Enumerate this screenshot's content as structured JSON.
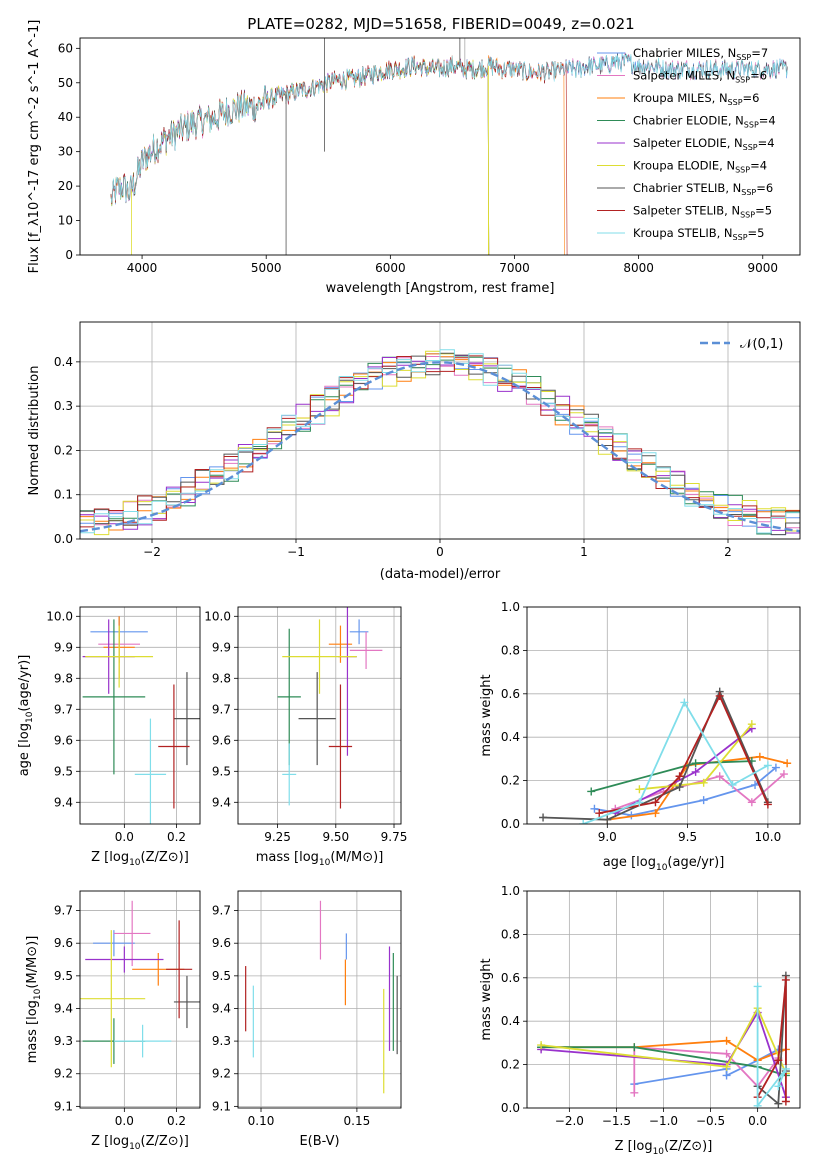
{
  "figure": {
    "title": "PLATE=0282, MJD=51658, FIBERID=0049, z=0.021"
  },
  "chart_data": [
    {
      "type": "line",
      "id": "spectrum",
      "xlabel": "wavelength [Angstrom, rest frame]",
      "ylabel": "Flux [f_λ10^-17 erg cm^-2 s^-1 A^-1]",
      "xlim": [
        3500,
        9300
      ],
      "ylim": [
        0,
        63
      ],
      "xticks": [
        4000,
        5000,
        6000,
        7000,
        8000,
        9000
      ],
      "yticks": [
        0,
        10,
        20,
        30,
        40,
        50,
        60
      ],
      "grid": false,
      "legend_position": "top-right",
      "continuum": {
        "x": [
          3750,
          3800,
          3850,
          3900,
          3950,
          4000,
          4100,
          4200,
          4300,
          4400,
          4500,
          4600,
          4700,
          4800,
          4900,
          5000,
          5100,
          5200,
          5300,
          5400,
          5500,
          5600,
          5700,
          5800,
          5900,
          6000,
          6100,
          6200,
          6300,
          6400,
          6500,
          6600,
          6700,
          6800,
          6900,
          7000,
          7100,
          7200,
          7300,
          7400,
          7500,
          7600,
          7700,
          7800,
          7900,
          8000,
          8100,
          8200,
          8300,
          8400,
          8500,
          8600,
          8700,
          8800,
          8900,
          9000,
          9100,
          9200
        ],
        "y": [
          16,
          19,
          20,
          18,
          22,
          27,
          31,
          34,
          36,
          38,
          39,
          40,
          42,
          43,
          43,
          45,
          46,
          47,
          48,
          49,
          50,
          51,
          51,
          52,
          53,
          54,
          54,
          55,
          54,
          54,
          55,
          54,
          54,
          55,
          54,
          54,
          53,
          53,
          53,
          54,
          54,
          55,
          55,
          56,
          56,
          55,
          55,
          54,
          54,
          54,
          54,
          54,
          54,
          54,
          54,
          54,
          54,
          54
        ]
      },
      "series": [
        {
          "name": "Chabrier MILES, N_SSP=7",
          "label_main": "Chabrier MILES, N",
          "label_sub": "SSP",
          "label_tail": "=7",
          "color": "#6495ed",
          "end": 9200
        },
        {
          "name": "Salpeter MILES, N_SSP=6",
          "label_main": "Salpeter MILES, N",
          "label_sub": "SSP",
          "label_tail": "=6",
          "color": "#e377c2",
          "end": 9200
        },
        {
          "name": "Kroupa MILES, N_SSP=6",
          "label_main": "Kroupa MILES, N",
          "label_sub": "SSP",
          "label_tail": "=6",
          "color": "#ff7f0e",
          "end": 7400
        },
        {
          "name": "Chabrier ELODIE, N_SSP=4",
          "label_main": "Chabrier ELODIE, N",
          "label_sub": "SSP",
          "label_tail": "=4",
          "color": "#2e8b57",
          "end": 6790
        },
        {
          "name": "Salpeter ELODIE, N_SSP=4",
          "label_main": "Salpeter ELODIE, N",
          "label_sub": "SSP",
          "label_tail": "=4",
          "color": "#9932cc",
          "end": 6790
        },
        {
          "name": "Kroupa ELODIE, N_SSP=4",
          "label_main": "Kroupa ELODIE, N",
          "label_sub": "SSP",
          "label_tail": "=4",
          "color": "#dddd33",
          "end": 6790
        },
        {
          "name": "Chabrier STELIB, N_SSP=6",
          "label_main": "Chabrier STELIB, N",
          "label_sub": "SSP",
          "label_tail": "=6",
          "color": "#555555",
          "end": 9200
        },
        {
          "name": "Salpeter STELIB, N_SSP=5",
          "label_main": "Salpeter STELIB, N",
          "label_sub": "SSP",
          "label_tail": "=5",
          "color": "#b22222",
          "end": 7420
        },
        {
          "name": "Kroupa STELIB, N_SSP=5",
          "label_main": "Kroupa STELIB, N",
          "label_sub": "SSP",
          "label_tail": "=5",
          "color": "#80deea",
          "end": 9200
        }
      ]
    },
    {
      "type": "histogram",
      "id": "residuals",
      "xlabel": "(data-model)/error",
      "ylabel": "Normed distribution",
      "xlim": [
        -2.5,
        2.5
      ],
      "ylim": [
        0,
        0.49
      ],
      "xticks": [
        -2,
        -1,
        0,
        1,
        2
      ],
      "yticks": [
        0.0,
        0.1,
        0.2,
        0.3,
        0.4
      ],
      "grid": true,
      "bins": 50,
      "legend_position": "top-right",
      "reference": {
        "name": "N(0,1)",
        "label": "𝒩(0,1)",
        "color": "#5b8fd6"
      }
    },
    {
      "type": "scatter",
      "id": "age-vs-z",
      "xlabel": "Z [log10(Z/Z⊙)]",
      "ylabel": "age [log10(age/yr)]",
      "xlim": [
        -0.17,
        0.29
      ],
      "ylim": [
        9.33,
        10.03
      ],
      "xticks": [
        0.0,
        0.2
      ],
      "yticks": [
        9.4,
        9.5,
        9.6,
        9.7,
        9.8,
        9.9,
        10.0
      ],
      "grid": true,
      "points": [
        {
          "x": -0.02,
          "y": 9.95,
          "ex": 0.11,
          "ey": 0.05,
          "color": "#6495ed"
        },
        {
          "x": -0.02,
          "y": 9.91,
          "ex": 0.08,
          "ey": 0.06,
          "color": "#e377c2"
        },
        {
          "x": -0.02,
          "y": 9.9,
          "ex": 0.06,
          "ey": 0.1,
          "color": "#ff7f0e"
        },
        {
          "x": -0.04,
          "y": 9.74,
          "ex": 0.12,
          "ey": 0.25,
          "color": "#2e8b57"
        },
        {
          "x": -0.06,
          "y": 9.87,
          "ex": 0.1,
          "ey": 0.12,
          "color": "#9932cc"
        },
        {
          "x": -0.02,
          "y": 9.87,
          "ex": 0.13,
          "ey": 0.1,
          "color": "#dddd33"
        },
        {
          "x": 0.24,
          "y": 9.67,
          "ex": 0.05,
          "ey": 0.15,
          "color": "#555555"
        },
        {
          "x": 0.19,
          "y": 9.58,
          "ex": 0.06,
          "ey": 0.2,
          "color": "#b22222"
        },
        {
          "x": 0.1,
          "y": 9.49,
          "ex": 0.06,
          "ey": 0.18,
          "color": "#80deea"
        }
      ]
    },
    {
      "type": "scatter",
      "id": "age-vs-mass",
      "xlabel": "mass [log10(M/M⊙)]",
      "ylabel": "",
      "xlim": [
        9.08,
        9.78
      ],
      "ylim": [
        9.33,
        10.03
      ],
      "xticks": [
        9.25,
        9.5,
        9.75
      ],
      "yticks": [
        9.4,
        9.5,
        9.6,
        9.7,
        9.8,
        9.9,
        10.0
      ],
      "grid": true,
      "points": [
        {
          "x": 9.6,
          "y": 9.95,
          "ex": 0.04,
          "ey": 0.04,
          "color": "#6495ed"
        },
        {
          "x": 9.63,
          "y": 9.89,
          "ex": 0.07,
          "ey": 0.06,
          "color": "#e377c2"
        },
        {
          "x": 9.52,
          "y": 9.91,
          "ex": 0.05,
          "ey": 0.06,
          "color": "#ff7f0e"
        },
        {
          "x": 9.3,
          "y": 9.74,
          "ex": 0.05,
          "ey": 0.22,
          "color": "#2e8b57"
        },
        {
          "x": 9.55,
          "y": 9.87,
          "ex": 0.04,
          "ey": 0.32,
          "color": "#9932cc"
        },
        {
          "x": 9.43,
          "y": 9.87,
          "ex": 0.16,
          "ey": 0.12,
          "color": "#dddd33"
        },
        {
          "x": 9.42,
          "y": 9.67,
          "ex": 0.08,
          "ey": 0.15,
          "color": "#555555"
        },
        {
          "x": 9.52,
          "y": 9.58,
          "ex": 0.05,
          "ey": 0.2,
          "color": "#b22222"
        },
        {
          "x": 9.3,
          "y": 9.49,
          "ex": 0.03,
          "ey": 0.1,
          "color": "#80deea"
        }
      ]
    },
    {
      "type": "line",
      "id": "weight-vs-age",
      "xlabel": "age [log10(age/yr)]",
      "ylabel": "mass weight",
      "xlim": [
        8.5,
        10.2
      ],
      "ylim": [
        0,
        1.0
      ],
      "xticks": [
        9.0,
        9.5,
        10.0
      ],
      "yticks": [
        0.0,
        0.2,
        0.4,
        0.6,
        0.8,
        1.0
      ],
      "grid": true,
      "series": [
        {
          "color": "#6495ed",
          "x": [
            8.92,
            9.15,
            9.6,
            9.92,
            10.05
          ],
          "y": [
            0.07,
            0.04,
            0.11,
            0.18,
            0.26
          ]
        },
        {
          "color": "#e377c2",
          "x": [
            9.05,
            9.35,
            9.7,
            9.9,
            10.1
          ],
          "y": [
            0.07,
            0.15,
            0.22,
            0.1,
            0.23
          ]
        },
        {
          "color": "#ff7f0e",
          "x": [
            9.0,
            9.3,
            9.5,
            9.95,
            10.12
          ],
          "y": [
            0.02,
            0.05,
            0.27,
            0.31,
            0.28
          ]
        },
        {
          "color": "#2e8b57",
          "x": [
            8.9,
            9.55,
            9.9
          ],
          "y": [
            0.15,
            0.28,
            0.29
          ]
        },
        {
          "color": "#9932cc",
          "x": [
            9.05,
            9.55,
            9.9
          ],
          "y": [
            0.05,
            0.24,
            0.44
          ]
        },
        {
          "color": "#dddd33",
          "x": [
            9.2,
            9.6,
            9.9
          ],
          "y": [
            0.16,
            0.19,
            0.46
          ]
        },
        {
          "color": "#555555",
          "x": [
            8.6,
            9.0,
            9.45,
            9.7,
            10.0
          ],
          "y": [
            0.03,
            0.02,
            0.17,
            0.61,
            0.1
          ]
        },
        {
          "color": "#b22222",
          "x": [
            8.95,
            9.3,
            9.45,
            9.7,
            10.0
          ],
          "y": [
            0.05,
            0.1,
            0.22,
            0.59,
            0.09
          ]
        },
        {
          "color": "#80deea",
          "x": [
            8.85,
            9.2,
            9.48,
            9.78,
            10.0
          ],
          "y": [
            0.0,
            0.1,
            0.56,
            0.18,
            0.27
          ]
        }
      ]
    },
    {
      "type": "scatter",
      "id": "mass-vs-z",
      "xlabel": "Z [log10(Z/Z⊙)]",
      "ylabel": "mass [log10(M/M⊙)]",
      "xlim": [
        -0.17,
        0.29
      ],
      "ylim": [
        9.095,
        9.76
      ],
      "xticks": [
        0.0,
        0.2
      ],
      "yticks": [
        9.1,
        9.2,
        9.3,
        9.4,
        9.5,
        9.6,
        9.7
      ],
      "grid": true,
      "points": [
        {
          "x": -0.04,
          "y": 9.6,
          "ex": 0.08,
          "ey": 0.04,
          "color": "#6495ed"
        },
        {
          "x": 0.03,
          "y": 9.63,
          "ex": 0.07,
          "ey": 0.1,
          "color": "#e377c2"
        },
        {
          "x": 0.13,
          "y": 9.52,
          "ex": 0.1,
          "ey": 0.05,
          "color": "#ff7f0e"
        },
        {
          "x": -0.04,
          "y": 9.3,
          "ex": 0.12,
          "ey": 0.07,
          "color": "#2e8b57"
        },
        {
          "x": 0.0,
          "y": 9.55,
          "ex": 0.15,
          "ey": 0.04,
          "color": "#9932cc"
        },
        {
          "x": -0.05,
          "y": 9.43,
          "ex": 0.13,
          "ey": 0.21,
          "color": "#dddd33"
        },
        {
          "x": 0.24,
          "y": 9.42,
          "ex": 0.05,
          "ey": 0.08,
          "color": "#555555"
        },
        {
          "x": 0.21,
          "y": 9.52,
          "ex": 0.05,
          "ey": 0.15,
          "color": "#b22222"
        },
        {
          "x": 0.07,
          "y": 9.3,
          "ex": 0.11,
          "ey": 0.05,
          "color": "#80deea"
        }
      ]
    },
    {
      "type": "scatter",
      "id": "mass-vs-ebv",
      "xlabel": "E(B-V)",
      "ylabel": "",
      "xlim": [
        0.088,
        0.173
      ],
      "ylim": [
        9.095,
        9.76
      ],
      "xticks": [
        0.1,
        0.15
      ],
      "yticks": [
        9.1,
        9.2,
        9.3,
        9.4,
        9.5,
        9.6,
        9.7
      ],
      "grid": true,
      "points": [
        {
          "x": 0.1445,
          "y": 9.59,
          "ex": 0,
          "ey": 0.04,
          "color": "#6495ed"
        },
        {
          "x": 0.131,
          "y": 9.64,
          "ex": 0,
          "ey": 0.09,
          "color": "#e377c2"
        },
        {
          "x": 0.144,
          "y": 9.48,
          "ex": 0,
          "ey": 0.07,
          "color": "#ff7f0e"
        },
        {
          "x": 0.169,
          "y": 9.42,
          "ex": 0,
          "ey": 0.15,
          "color": "#2e8b57"
        },
        {
          "x": 0.167,
          "y": 9.43,
          "ex": 0,
          "ey": 0.16,
          "color": "#9932cc"
        },
        {
          "x": 0.164,
          "y": 9.3,
          "ex": 0,
          "ey": 0.16,
          "color": "#dddd33"
        },
        {
          "x": 0.171,
          "y": 9.38,
          "ex": 0,
          "ey": 0.12,
          "color": "#555555"
        },
        {
          "x": 0.092,
          "y": 9.43,
          "ex": 0,
          "ey": 0.1,
          "color": "#b22222"
        },
        {
          "x": 0.096,
          "y": 9.36,
          "ex": 0,
          "ey": 0.11,
          "color": "#80deea"
        }
      ]
    },
    {
      "type": "line",
      "id": "weight-vs-z",
      "xlabel": "Z [log10(Z/Z⊙)]",
      "ylabel": "mass weight",
      "xlim": [
        -2.45,
        0.45
      ],
      "ylim": [
        0,
        1.0
      ],
      "xticks": [
        -2.0,
        -1.5,
        -1.0,
        -0.5,
        0.0
      ],
      "yticks": [
        0.0,
        0.2,
        0.4,
        0.6,
        0.8,
        1.0
      ],
      "grid": true,
      "series": [
        {
          "color": "#6495ed",
          "x": [
            -1.31,
            -0.33,
            -0.33,
            0.0,
            0.22
          ],
          "y": [
            0.11,
            0.18,
            0.15,
            0.22,
            0.27
          ]
        },
        {
          "color": "#e377c2",
          "x": [
            -1.31,
            -1.31,
            -0.33,
            0.0,
            0.22
          ],
          "y": [
            0.07,
            0.28,
            0.25,
            0.1,
            0.23
          ]
        },
        {
          "color": "#ff7f0e",
          "x": [
            -2.3,
            -1.31,
            -0.33,
            0.0,
            0.3
          ],
          "y": [
            0.28,
            0.28,
            0.31,
            0.22,
            0.27
          ]
        },
        {
          "color": "#2e8b57",
          "x": [
            -2.3,
            -1.31,
            0.0,
            0.3
          ],
          "y": [
            0.28,
            0.28,
            0.19,
            0.15
          ]
        },
        {
          "color": "#9932cc",
          "x": [
            -2.3,
            -0.33,
            0.0,
            0.3
          ],
          "y": [
            0.27,
            0.2,
            0.44,
            0.05
          ]
        },
        {
          "color": "#dddd33",
          "x": [
            -2.3,
            -0.33,
            0.0,
            0.3
          ],
          "y": [
            0.29,
            0.19,
            0.46,
            0.16
          ]
        },
        {
          "color": "#555555",
          "x": [
            0.0,
            0.22,
            0.3,
            0.3
          ],
          "y": [
            0.1,
            0.02,
            0.61,
            0.17
          ]
        },
        {
          "color": "#b22222",
          "x": [
            0.0,
            0.22,
            0.3,
            0.3
          ],
          "y": [
            0.05,
            0.22,
            0.59,
            0.03
          ]
        },
        {
          "color": "#80deea",
          "x": [
            0.0,
            0.0,
            0.3,
            0.22
          ],
          "y": [
            0.56,
            0.01,
            0.18,
            0.1
          ]
        }
      ]
    }
  ]
}
